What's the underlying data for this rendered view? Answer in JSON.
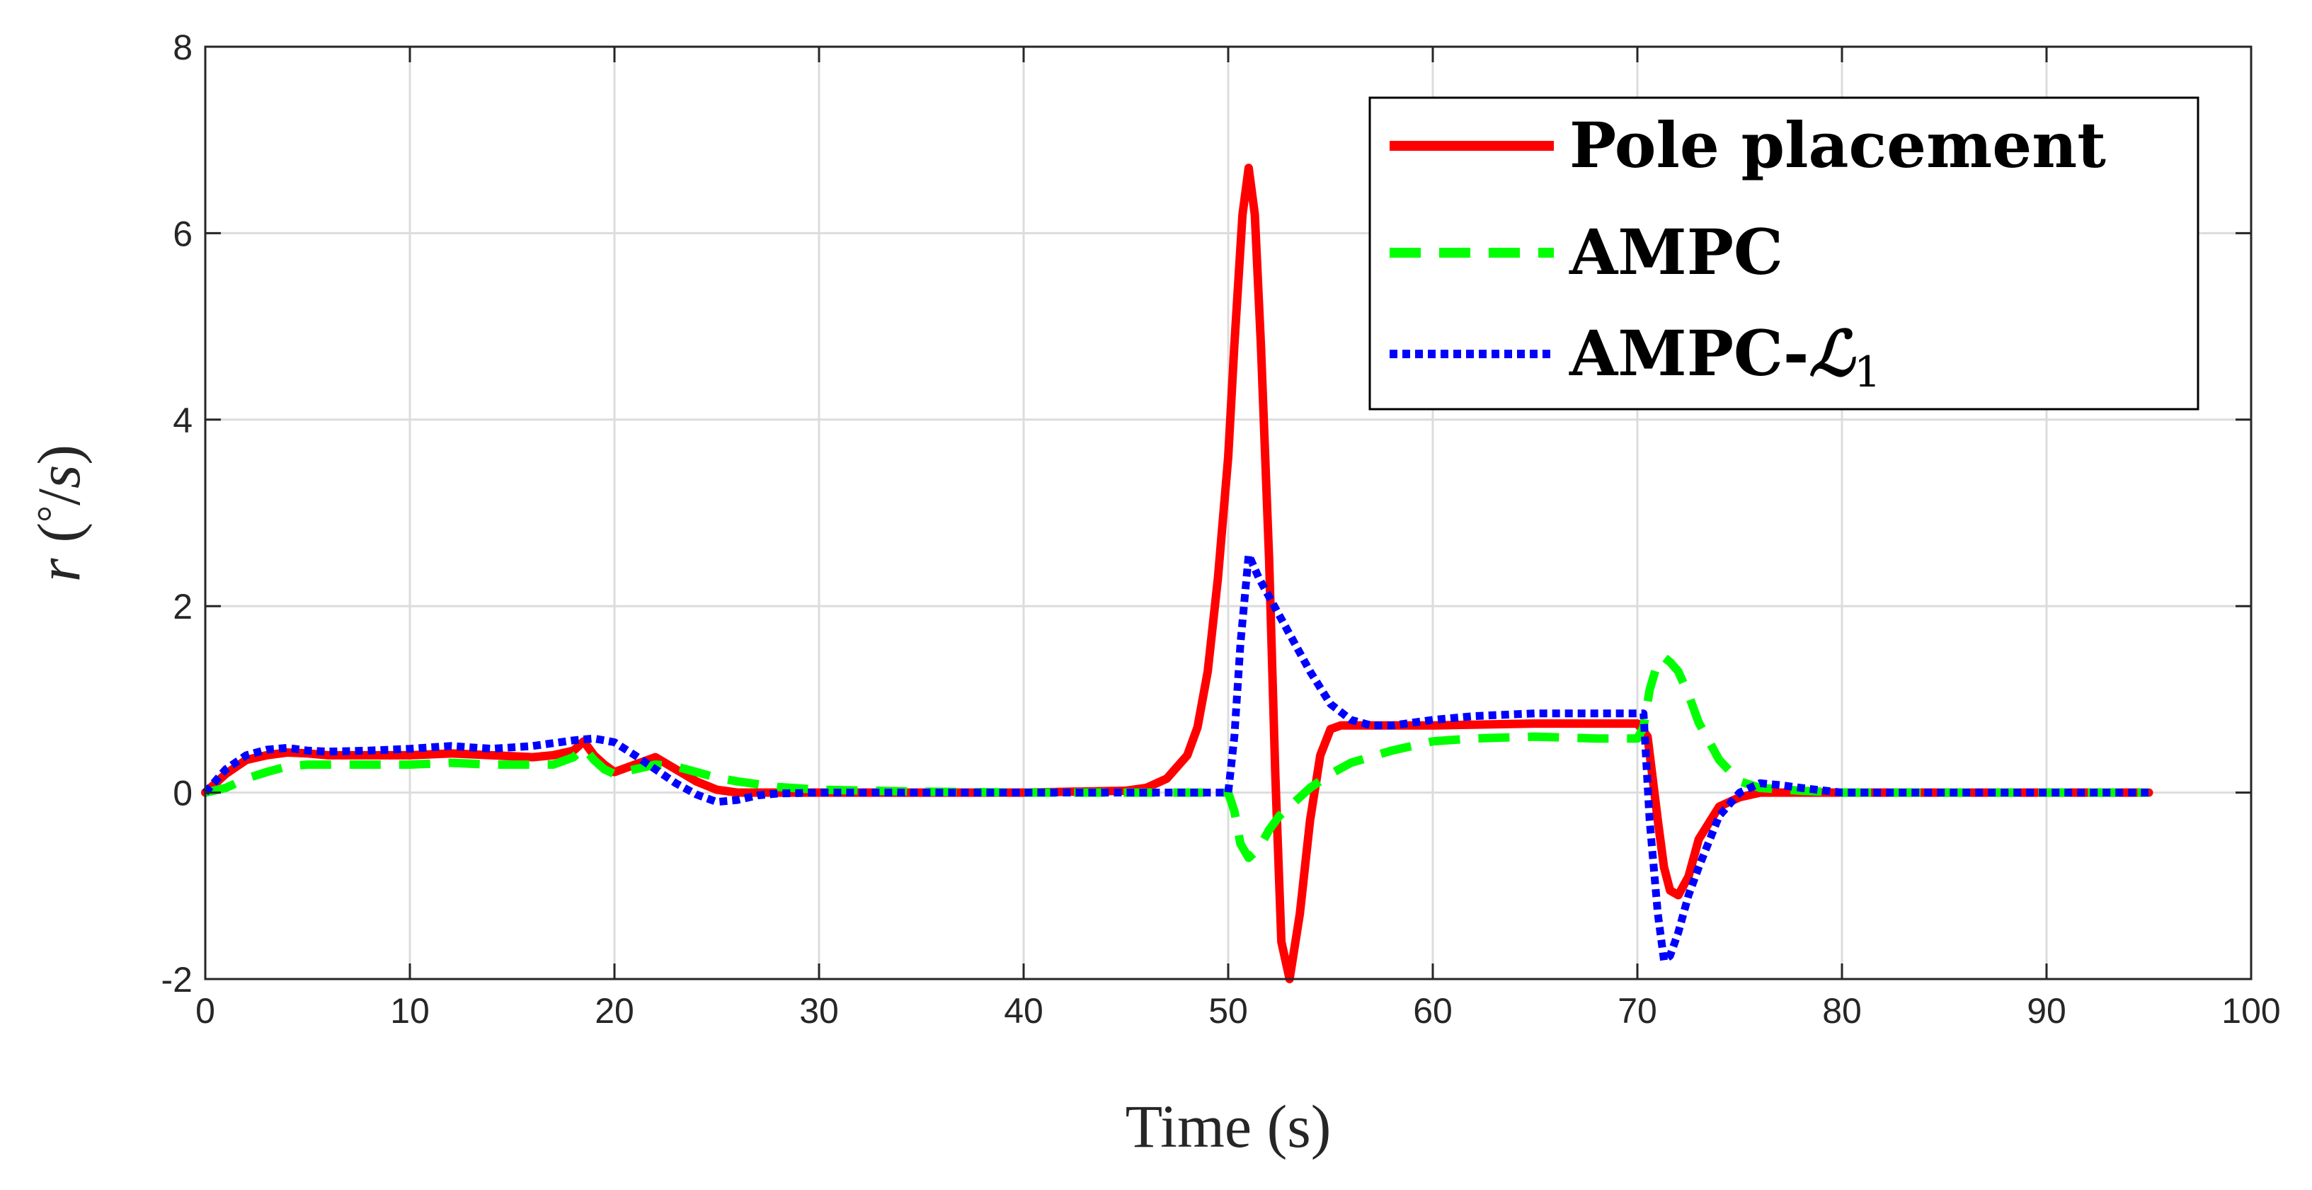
{
  "chart_data": {
    "type": "line",
    "title": "",
    "xlabel": "Time (s)",
    "ylabel": "r (°/s)",
    "ylabel_parts": {
      "var": "r",
      "open": "(",
      "deg": "°",
      "slash": "/",
      "unit": "s",
      "close": ")"
    },
    "xlim": [
      0,
      100
    ],
    "ylim": [
      -2,
      8
    ],
    "x_ticks": [
      0,
      10,
      20,
      30,
      40,
      50,
      60,
      70,
      80,
      90,
      100
    ],
    "x_tick_labels": [
      "0",
      "10",
      "20",
      "30",
      "40",
      "50",
      "60",
      "70",
      "80",
      "90",
      "100"
    ],
    "y_ticks": [
      -2,
      0,
      2,
      4,
      6,
      8
    ],
    "y_tick_labels": [
      "-2",
      "0",
      "2",
      "4",
      "6",
      "8"
    ],
    "grid": true,
    "legend_position": "top-right",
    "series": [
      {
        "name": "Pole placement",
        "color": "#ff0000",
        "style": "solid",
        "x": [
          0,
          1,
          2,
          3,
          4,
          5,
          6,
          8,
          10,
          12,
          14,
          16,
          17,
          18,
          18.5,
          19,
          19.5,
          20,
          21,
          22,
          23,
          24,
          25,
          26,
          28,
          30,
          35,
          40,
          45,
          46,
          47,
          48,
          48.5,
          49,
          49.5,
          50,
          50.3,
          50.7,
          51,
          51.3,
          51.6,
          52,
          52.3,
          52.6,
          53,
          53.5,
          54,
          54.5,
          55,
          55.5,
          56,
          58,
          60,
          65,
          70,
          70.5,
          71,
          71.3,
          71.6,
          72,
          72.5,
          73,
          74,
          75,
          76,
          78,
          80,
          85,
          90,
          95
        ],
        "values": [
          0,
          0.2,
          0.35,
          0.4,
          0.43,
          0.42,
          0.4,
          0.4,
          0.4,
          0.42,
          0.4,
          0.38,
          0.4,
          0.45,
          0.55,
          0.4,
          0.3,
          0.22,
          0.3,
          0.38,
          0.25,
          0.12,
          0.03,
          0,
          0,
          0,
          0,
          0,
          0.02,
          0.05,
          0.15,
          0.4,
          0.7,
          1.3,
          2.3,
          3.6,
          4.8,
          6.2,
          6.7,
          6.2,
          4.8,
          2.5,
          0.2,
          -1.6,
          -2.0,
          -1.3,
          -0.3,
          0.4,
          0.68,
          0.72,
          0.72,
          0.72,
          0.72,
          0.74,
          0.74,
          0.6,
          -0.3,
          -0.8,
          -1.05,
          -1.1,
          -0.9,
          -0.5,
          -0.15,
          -0.05,
          0,
          0,
          0,
          0,
          0,
          0
        ]
      },
      {
        "name": "AMPC",
        "color": "#00ff00",
        "style": "dashed",
        "x": [
          0,
          1,
          2,
          3,
          4,
          5,
          6,
          8,
          10,
          12,
          14,
          16,
          17,
          18,
          18.5,
          19,
          19.5,
          20,
          21,
          22,
          23,
          24,
          25,
          26,
          28,
          30,
          35,
          40,
          45,
          49,
          50,
          50.3,
          50.6,
          51,
          51.5,
          52,
          52.5,
          53,
          54,
          55,
          56,
          58,
          60,
          62,
          65,
          68,
          70,
          70.3,
          70.6,
          71,
          71.3,
          71.6,
          72,
          72.5,
          73,
          74,
          75,
          76,
          78,
          80,
          85,
          90,
          95
        ],
        "values": [
          0,
          0.05,
          0.15,
          0.22,
          0.28,
          0.3,
          0.3,
          0.3,
          0.3,
          0.32,
          0.3,
          0.3,
          0.3,
          0.38,
          0.48,
          0.35,
          0.25,
          0.2,
          0.25,
          0.3,
          0.28,
          0.22,
          0.16,
          0.12,
          0.06,
          0.03,
          0.01,
          0,
          0,
          0,
          0,
          -0.2,
          -0.55,
          -0.7,
          -0.6,
          -0.4,
          -0.25,
          -0.15,
          0.05,
          0.2,
          0.32,
          0.45,
          0.55,
          0.58,
          0.6,
          0.58,
          0.58,
          0.7,
          1.1,
          1.4,
          1.45,
          1.4,
          1.3,
          1.05,
          0.75,
          0.35,
          0.12,
          0.05,
          0.02,
          0,
          0,
          0,
          0
        ]
      },
      {
        "name": "AMPC-ℒ1",
        "label_main": "AMPC-",
        "label_script": "ℒ",
        "label_sub": "1",
        "color": "#0000ff",
        "style": "dotted",
        "x": [
          0,
          1,
          2,
          3,
          4,
          5,
          6,
          8,
          10,
          12,
          14,
          16,
          18,
          19,
          20,
          21,
          22,
          23,
          24,
          25,
          26,
          27,
          28,
          30,
          35,
          40,
          45,
          50,
          50.3,
          50.6,
          51,
          51.5,
          52,
          53,
          54,
          55,
          56,
          57,
          58,
          60,
          62,
          65,
          68,
          70,
          70.3,
          70.6,
          71,
          71.3,
          71.6,
          72,
          72.5,
          73,
          74,
          75,
          76,
          77,
          78,
          80,
          85,
          90,
          95
        ],
        "values": [
          0,
          0.25,
          0.4,
          0.46,
          0.48,
          0.45,
          0.44,
          0.45,
          0.47,
          0.5,
          0.47,
          0.5,
          0.56,
          0.58,
          0.54,
          0.4,
          0.25,
          0.1,
          -0.02,
          -0.1,
          -0.08,
          -0.03,
          -0.01,
          0,
          0,
          0,
          0,
          0,
          0.6,
          1.6,
          2.55,
          2.3,
          2.1,
          1.7,
          1.3,
          0.95,
          0.78,
          0.72,
          0.72,
          0.78,
          0.82,
          0.85,
          0.85,
          0.85,
          0.85,
          -0.3,
          -1.3,
          -1.8,
          -1.75,
          -1.5,
          -1.1,
          -0.8,
          -0.25,
          0,
          0.1,
          0.08,
          0.05,
          0,
          0,
          0,
          0
        ]
      }
    ]
  }
}
